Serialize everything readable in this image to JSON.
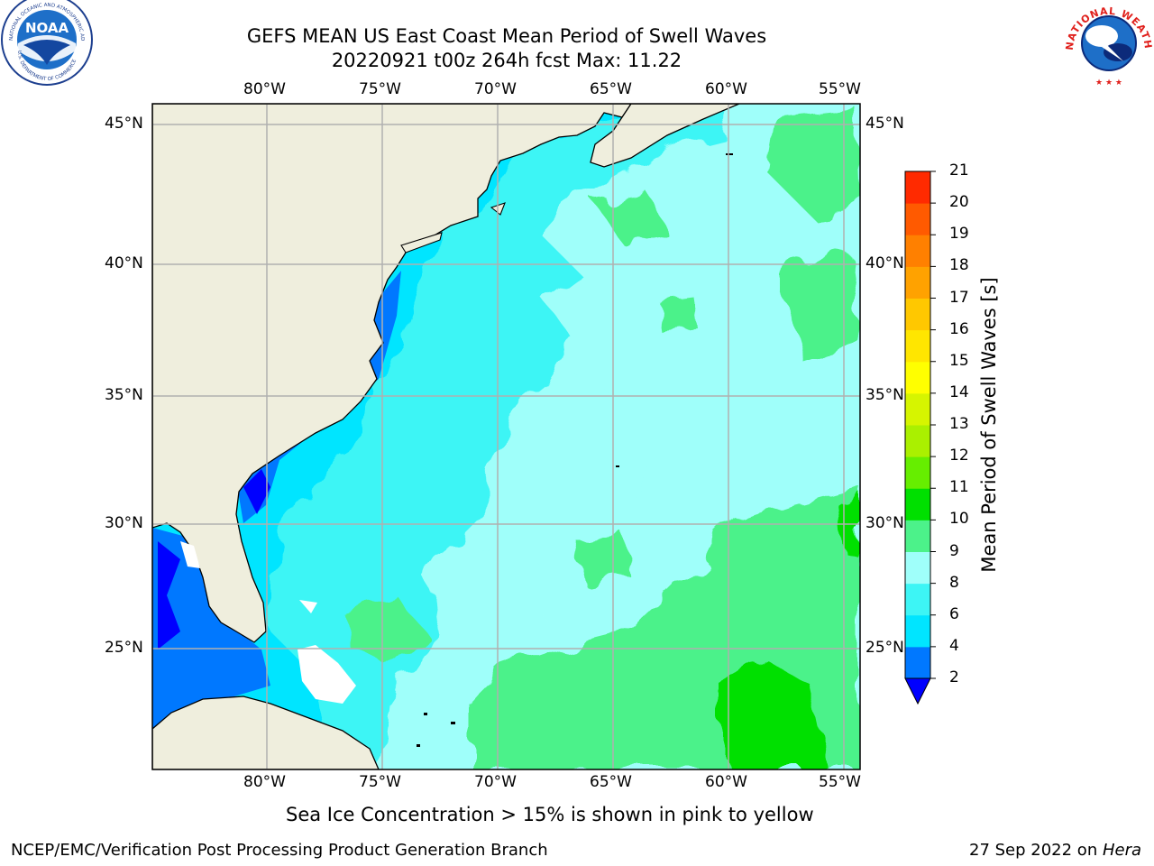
{
  "title": {
    "line1": "GEFS MEAN US East Coast Mean Period of Swell Waves",
    "line2": "20220921 t00z 264h fcst   Max: 11.22"
  },
  "map": {
    "lon_labels": [
      "80°W",
      "75°W",
      "70°W",
      "65°W",
      "60°W",
      "55°W"
    ],
    "lat_labels": [
      "45°N",
      "40°N",
      "35°N",
      "30°N",
      "25°N"
    ],
    "land_color": "#efeedd",
    "coast_color": "#000000",
    "grid_color": "#b0b0b0"
  },
  "colorbar": {
    "label": "Mean Period of Swell Waves [s]",
    "ticks": [
      "2",
      "4",
      "6",
      "8",
      "9",
      "10",
      "11",
      "12",
      "13",
      "14",
      "15",
      "16",
      "17",
      "18",
      "19",
      "20",
      "21"
    ],
    "colors": [
      "#0078ff",
      "#00e5ff",
      "#3df5f5",
      "#9ffffa",
      "#4cf28a",
      "#00e000",
      "#66ee00",
      "#aaf000",
      "#d6f500",
      "#ffff00",
      "#ffe600",
      "#ffc800",
      "#ffa200",
      "#ff8000",
      "#ff5a00",
      "#ff2a00"
    ],
    "under_color": "#0000ff"
  },
  "caption": "Sea Ice Concentration > 15% is shown in pink to yellow",
  "footer": {
    "left": "NCEP/EMC/Verification Post Processing Product Generation Branch",
    "right_prefix": "27 Sep 2022 on ",
    "right_host": "Hera"
  },
  "logos": {
    "noaa_text": "NOAA",
    "noaa_ring": "NATIONAL OCEANIC AND ATMOSPHERIC ADMINISTRATION",
    "noaa_ring_bottom": "U.S. DEPARTMENT OF COMMERCE",
    "nws_ring": "NATIONAL WEATHER SERVICE"
  }
}
